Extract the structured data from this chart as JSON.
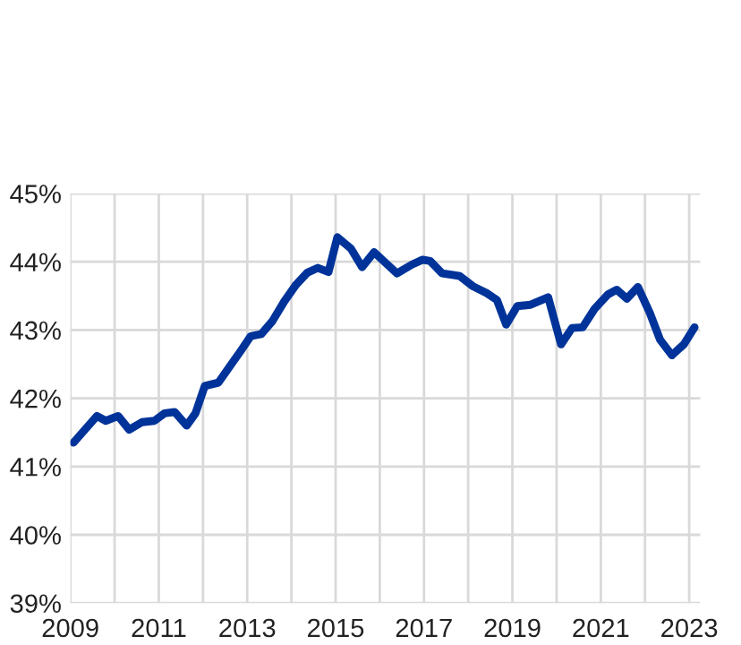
{
  "chart_data": {
    "type": "line",
    "x": [
      2009.07,
      2009.6,
      2009.8,
      2010.08,
      2010.33,
      2010.62,
      2010.9,
      2011.13,
      2011.36,
      2011.63,
      2011.83,
      2012.04,
      2012.35,
      2012.62,
      2012.85,
      2013.08,
      2013.32,
      2013.57,
      2013.84,
      2014.1,
      2014.36,
      2014.6,
      2014.84,
      2015.04,
      2015.35,
      2015.6,
      2015.87,
      2016.39,
      2016.73,
      2016.97,
      2017.14,
      2017.41,
      2017.81,
      2018.11,
      2018.42,
      2018.65,
      2018.86,
      2019.11,
      2019.41,
      2019.81,
      2020.1,
      2020.35,
      2020.59,
      2020.86,
      2021.16,
      2021.36,
      2021.59,
      2021.84,
      2022.11,
      2022.34,
      2022.61,
      2022.88,
      2023.12
    ],
    "series": [
      {
        "color": "#003399",
        "values": [
          41.35,
          41.74,
          41.67,
          41.74,
          41.54,
          41.65,
          41.67,
          41.78,
          41.8,
          41.6,
          41.78,
          42.18,
          42.23,
          42.48,
          42.69,
          42.91,
          42.94,
          43.13,
          43.42,
          43.66,
          43.84,
          43.91,
          43.85,
          44.36,
          44.19,
          43.92,
          44.14,
          43.83,
          43.96,
          44.03,
          44.01,
          43.83,
          43.79,
          43.64,
          43.54,
          43.44,
          43.08,
          43.35,
          43.37,
          43.48,
          42.79,
          43.03,
          43.04,
          43.31,
          43.52,
          43.59,
          43.46,
          43.63,
          43.25,
          42.86,
          42.63,
          42.79,
          43.04
        ]
      }
    ],
    "xlim": [
      2009,
      2023.25
    ],
    "xticks": [
      2009,
      {
        "value": 2010,
        "label": null
      },
      2011,
      {
        "value": 2012,
        "label": null
      },
      2013,
      {
        "value": 2014,
        "label": null
      },
      2015,
      {
        "value": 2016,
        "label": null
      },
      2017,
      {
        "value": 2018,
        "label": null
      },
      2019,
      {
        "value": 2020,
        "label": null
      },
      2021,
      {
        "value": 2022,
        "label": null
      },
      2023
    ],
    "ylim": [
      39,
      45
    ],
    "yticks": [
      {
        "value": 39,
        "label": "39%"
      },
      {
        "value": 40,
        "label": "40%"
      },
      {
        "value": 41,
        "label": "41%"
      },
      {
        "value": 42,
        "label": "42%"
      },
      {
        "value": 43,
        "label": "43%"
      },
      {
        "value": 44,
        "label": "44%"
      },
      {
        "value": 45,
        "label": "45%"
      }
    ],
    "grid": true,
    "marker": "none",
    "line_style": "solid"
  }
}
